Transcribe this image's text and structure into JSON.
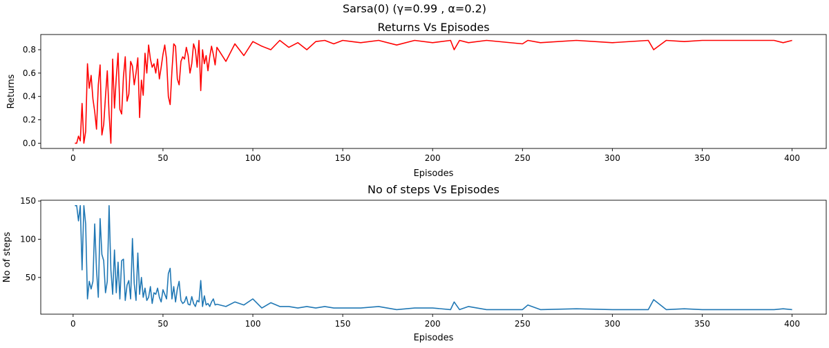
{
  "figure": {
    "suptitle": "Sarsa(0) (γ=0.99 , α=0.2)"
  },
  "chart_data": [
    {
      "type": "line",
      "title": "Returns Vs Episodes",
      "xlabel": "Episodes",
      "ylabel": "Returns",
      "xlim": [
        -18,
        419
      ],
      "ylim": [
        -0.045,
        0.93
      ],
      "xticks": [
        0,
        50,
        100,
        150,
        200,
        250,
        300,
        350,
        400
      ],
      "yticks": [
        0.0,
        0.2,
        0.4,
        0.6,
        0.8
      ],
      "ytick_labels": [
        "0.0",
        "0.2",
        "0.4",
        "0.6",
        "0.8"
      ],
      "grid": false,
      "color": "#ff0000",
      "series": [
        {
          "x": [
            1,
            2,
            3,
            4,
            5,
            6,
            7,
            8,
            9,
            10,
            11,
            12,
            13,
            14,
            15,
            16,
            17,
            18,
            19,
            20,
            21,
            22,
            23,
            24,
            25,
            26,
            27,
            28,
            29,
            30,
            31,
            32,
            33,
            34,
            35,
            36,
            37,
            38,
            39,
            40,
            41,
            42,
            43,
            44,
            45,
            46,
            47,
            48,
            49,
            50,
            51,
            52,
            53,
            54,
            55,
            56,
            57,
            58,
            59,
            60,
            61,
            62,
            63,
            64,
            65,
            66,
            67,
            68,
            69,
            70,
            71,
            72,
            73,
            74,
            75,
            76,
            77,
            78,
            79,
            80,
            85,
            90,
            95,
            100,
            105,
            110,
            115,
            120,
            125,
            130,
            135,
            140,
            145,
            150,
            160,
            170,
            180,
            190,
            200,
            210,
            212,
            215,
            220,
            230,
            250,
            253,
            260,
            280,
            300,
            320,
            323,
            330,
            340,
            350,
            380,
            390,
            395,
            400
          ],
          "y": [
            0.0,
            0.0,
            0.06,
            0.02,
            0.34,
            0.0,
            0.1,
            0.68,
            0.47,
            0.58,
            0.38,
            0.27,
            0.12,
            0.5,
            0.67,
            0.07,
            0.16,
            0.4,
            0.62,
            0.25,
            0.0,
            0.72,
            0.3,
            0.56,
            0.77,
            0.29,
            0.25,
            0.57,
            0.74,
            0.36,
            0.42,
            0.7,
            0.66,
            0.5,
            0.6,
            0.73,
            0.22,
            0.54,
            0.41,
            0.77,
            0.6,
            0.84,
            0.72,
            0.65,
            0.68,
            0.6,
            0.72,
            0.55,
            0.65,
            0.76,
            0.84,
            0.72,
            0.4,
            0.33,
            0.62,
            0.85,
            0.83,
            0.55,
            0.5,
            0.7,
            0.74,
            0.72,
            0.82,
            0.75,
            0.6,
            0.68,
            0.85,
            0.8,
            0.65,
            0.88,
            0.45,
            0.8,
            0.68,
            0.75,
            0.62,
            0.74,
            0.83,
            0.76,
            0.67,
            0.82,
            0.7,
            0.85,
            0.75,
            0.87,
            0.83,
            0.8,
            0.88,
            0.82,
            0.86,
            0.8,
            0.87,
            0.88,
            0.85,
            0.88,
            0.86,
            0.88,
            0.84,
            0.88,
            0.86,
            0.88,
            0.8,
            0.88,
            0.86,
            0.88,
            0.85,
            0.88,
            0.86,
            0.88,
            0.86,
            0.88,
            0.8,
            0.88,
            0.87,
            0.88,
            0.88,
            0.88,
            0.86,
            0.88
          ]
        }
      ]
    },
    {
      "type": "line",
      "title": "No of steps Vs Episodes",
      "xlabel": "Episodes",
      "ylabel": "No of steps",
      "xlim": [
        -18,
        419
      ],
      "ylim": [
        2,
        151
      ],
      "xticks": [
        0,
        50,
        100,
        150,
        200,
        250,
        300,
        350,
        400
      ],
      "yticks": [
        50,
        100,
        150
      ],
      "ytick_labels": [
        "50",
        "100",
        "150"
      ],
      "grid": false,
      "color": "#1f77b4",
      "series": [
        {
          "x": [
            1,
            2,
            3,
            4,
            5,
            6,
            7,
            8,
            9,
            10,
            11,
            12,
            13,
            14,
            15,
            16,
            17,
            18,
            19,
            20,
            21,
            22,
            23,
            24,
            25,
            26,
            27,
            28,
            29,
            30,
            31,
            32,
            33,
            34,
            35,
            36,
            37,
            38,
            39,
            40,
            41,
            42,
            43,
            44,
            45,
            46,
            47,
            48,
            49,
            50,
            51,
            52,
            53,
            54,
            55,
            56,
            57,
            58,
            59,
            60,
            61,
            62,
            63,
            64,
            65,
            66,
            67,
            68,
            69,
            70,
            71,
            72,
            73,
            74,
            75,
            76,
            77,
            78,
            79,
            80,
            85,
            90,
            95,
            100,
            105,
            110,
            115,
            120,
            125,
            130,
            135,
            140,
            145,
            150,
            160,
            170,
            180,
            190,
            200,
            210,
            212,
            215,
            220,
            230,
            250,
            253,
            260,
            280,
            300,
            320,
            323,
            330,
            340,
            350,
            380,
            390,
            395,
            400
          ],
          "y": [
            144,
            144,
            124,
            144,
            60,
            144,
            120,
            22,
            45,
            35,
            45,
            120,
            60,
            24,
            127,
            80,
            72,
            30,
            45,
            144,
            60,
            28,
            86,
            30,
            70,
            22,
            72,
            74,
            20,
            40,
            46,
            22,
            101,
            42,
            20,
            82,
            28,
            50,
            24,
            36,
            20,
            24,
            38,
            16,
            30,
            28,
            36,
            24,
            18,
            34,
            28,
            22,
            55,
            62,
            22,
            38,
            18,
            35,
            45,
            20,
            16,
            18,
            25,
            15,
            14,
            25,
            16,
            12,
            20,
            18,
            46,
            12,
            26,
            14,
            16,
            12,
            18,
            22,
            14,
            15,
            12,
            18,
            14,
            22,
            10,
            17,
            12,
            12,
            10,
            12,
            10,
            12,
            10,
            10,
            10,
            12,
            8,
            10,
            10,
            8,
            18,
            8,
            12,
            8,
            8,
            14,
            8,
            9,
            8,
            8,
            21,
            8,
            9,
            8,
            8,
            8,
            9,
            8
          ]
        }
      ]
    }
  ]
}
